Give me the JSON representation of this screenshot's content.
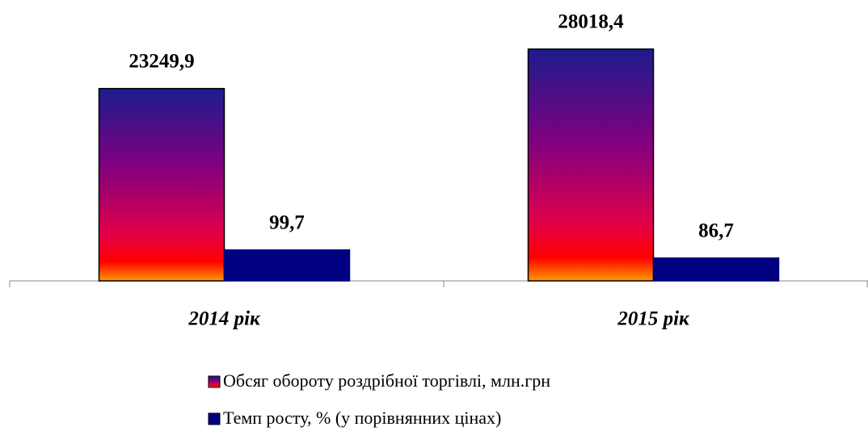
{
  "chart_data": {
    "type": "bar",
    "categories": [
      "2014 рік",
      "2015 рік"
    ],
    "series": [
      {
        "name": "Обсяг обороту роздрібної торгівлі, млн.грн",
        "gradient": [
          "#1c1c8c",
          "#800080",
          "#e0004a",
          "#ff0000",
          "#ff9900"
        ],
        "values": [
          23249.9,
          28018.4
        ],
        "value_labels": [
          "23249,9",
          "28018,4"
        ]
      },
      {
        "name": "Темп росту, % (у порівнянних цінах)",
        "color": "#000080",
        "axis": "y2",
        "values": [
          99.7,
          86.7
        ],
        "value_labels": [
          "99,7",
          "86,7"
        ]
      }
    ],
    "ylim": [
      0,
      32000
    ],
    "y2lim": [
      50,
      475
    ]
  }
}
